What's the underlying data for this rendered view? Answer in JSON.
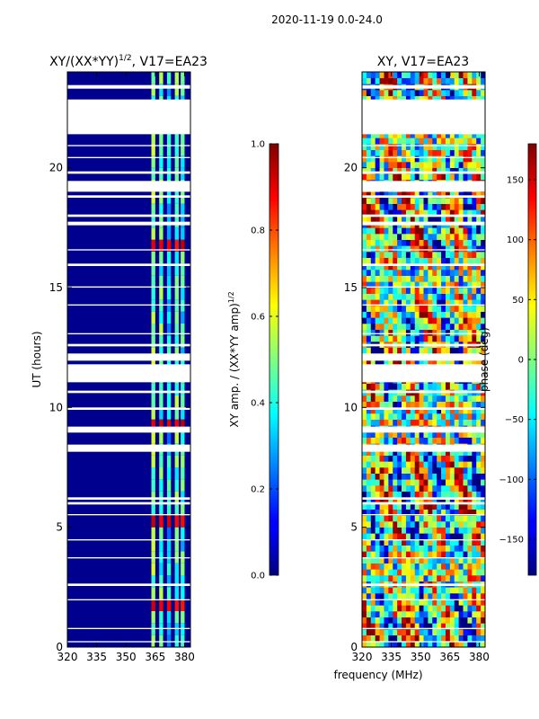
{
  "chart_data": {
    "type": "heatmap",
    "title": "2020-11-19 0.0-24.0",
    "xlabel": "frequency (MHz)",
    "xlim": [
      320,
      383
    ],
    "ylim": [
      0,
      24
    ],
    "x_ticks": [
      "320",
      "335",
      "350",
      "365",
      "380"
    ],
    "y_ticks": [
      "0",
      "5",
      "10",
      "15",
      "20"
    ],
    "panels": [
      {
        "id": "amp",
        "title": "XY/(XX*YY)",
        "title_suffix": ", V17=EA23",
        "ylabel": "UT (hours)",
        "colorbar_label": "XY amp. / (XX*YY amp)",
        "colorbar_ticks": [
          "0.0",
          "0.2",
          "0.4",
          "0.6",
          "0.8",
          "1.0"
        ],
        "colorbar_range": [
          0,
          1
        ]
      },
      {
        "id": "phase",
        "title": "XY, V17=EA23",
        "colorbar_label": "phase (deg)",
        "colorbar_ticks": [
          "−150",
          "−100",
          "−50",
          "0",
          "50",
          "100",
          "150"
        ],
        "colorbar_range": [
          -180,
          180
        ]
      }
    ],
    "data_gaps_hours": [
      [
        23.3,
        23.45
      ],
      [
        21.4,
        22.85
      ],
      [
        20.9,
        20.95
      ],
      [
        20.4,
        20.45
      ],
      [
        19.75,
        19.85
      ],
      [
        19.0,
        19.45
      ],
      [
        18.75,
        18.85
      ],
      [
        17.95,
        18.05
      ],
      [
        17.6,
        17.75
      ],
      [
        16.55,
        16.6
      ],
      [
        15.9,
        16.0
      ],
      [
        15.0,
        15.05
      ],
      [
        14.25,
        14.3
      ],
      [
        13.05,
        13.1
      ],
      [
        12.55,
        12.65
      ],
      [
        11.95,
        12.25
      ],
      [
        11.05,
        11.8
      ],
      [
        10.6,
        10.7
      ],
      [
        9.9,
        10.0
      ],
      [
        8.95,
        9.2
      ],
      [
        8.15,
        8.45
      ],
      [
        6.15,
        6.25
      ],
      [
        5.95,
        6.05
      ],
      [
        5.5,
        5.55
      ],
      [
        4.45,
        4.5
      ],
      [
        3.7,
        3.75
      ],
      [
        2.55,
        2.65
      ],
      [
        1.95,
        2.0
      ],
      [
        0.75,
        0.8
      ],
      [
        0.2,
        0.25
      ]
    ],
    "rfi_bands_mhz": [
      {
        "lo": 363,
        "hi": 365,
        "level": 0.5
      },
      {
        "lo": 367,
        "hi": 369,
        "level": 0.45
      },
      {
        "lo": 371,
        "hi": 373,
        "level": 0.35
      },
      {
        "lo": 375,
        "hi": 377,
        "level": 0.45
      },
      {
        "lo": 378,
        "hi": 380,
        "level": 0.4
      }
    ],
    "high_amp_windows_hours": [
      [
        9.2,
        9.6
      ],
      [
        5.2,
        5.6
      ],
      [
        1.5,
        1.8
      ],
      [
        17.3,
        17.6
      ],
      [
        16.5,
        16.8
      ]
    ]
  }
}
